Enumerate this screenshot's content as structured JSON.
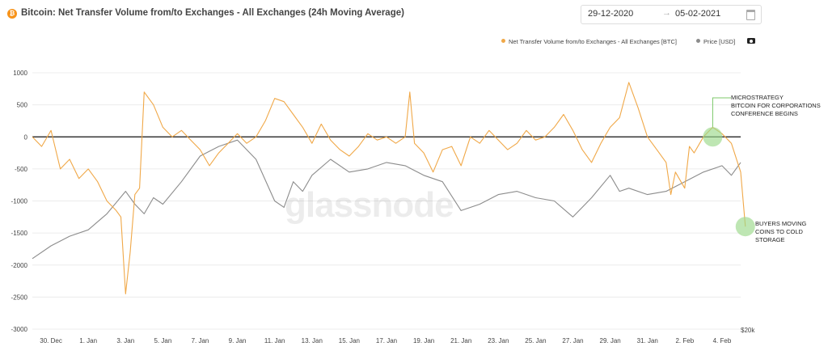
{
  "header": {
    "title": "Bitcoin: Net Transfer Volume from/to Exchanges - All Exchanges (24h Moving Average)",
    "badge": "₿",
    "date_from": "29-12-2020",
    "date_sep": "→",
    "date_to": "05-02-2021"
  },
  "legend": {
    "series_a": "Net Transfer Volume from/to Exchanges - All Exchanges [BTC]",
    "series_b": "Price [USD]"
  },
  "watermark": "glassnode",
  "icons": {
    "badge": "bitcoin-icon",
    "calendar": "calendar-icon",
    "camera": "camera-icon"
  },
  "colors": {
    "net_transfer": "#f0a848",
    "price": "#8c8c8c",
    "zero_line": "#111111",
    "annotation": "#9bd88a"
  },
  "chart_data": {
    "type": "line",
    "title": "Bitcoin: Net Transfer Volume from/to Exchanges - All Exchanges (24h Moving Average)",
    "x_ticks": [
      "30. Dec",
      "1. Jan",
      "3. Jan",
      "5. Jan",
      "7. Jan",
      "9. Jan",
      "11. Jan",
      "13. Jan",
      "15. Jan",
      "17. Jan",
      "19. Jan",
      "21. Jan",
      "23. Jan",
      "25. Jan",
      "27. Jan",
      "29. Jan",
      "31. Jan",
      "2. Feb",
      "4. Feb"
    ],
    "y_ticks": [
      1000,
      500,
      0,
      -500,
      -1000,
      -1500,
      -2000,
      -2500,
      -3000
    ],
    "y_label_right": "$20k",
    "ylim": [
      -3000,
      1000
    ],
    "x_range": [
      "2020-12-29",
      "2021-02-05"
    ],
    "grid": "horizontal",
    "legend_position": "top-right",
    "series": [
      {
        "name": "Net Transfer Volume from/to Exchanges - All Exchanges [BTC]",
        "color": "#f0a848",
        "points": [
          [
            "2020-12-29T00:00",
            0
          ],
          [
            "2020-12-29T12:00",
            -150
          ],
          [
            "2020-12-30T00:00",
            100
          ],
          [
            "2020-12-30T12:00",
            -500
          ],
          [
            "2020-12-31T00:00",
            -350
          ],
          [
            "2020-12-31T12:00",
            -650
          ],
          [
            "2021-01-01T00:00",
            -500
          ],
          [
            "2021-01-01T12:00",
            -700
          ],
          [
            "2021-01-02T00:00",
            -1000
          ],
          [
            "2021-01-02T12:00",
            -1150
          ],
          [
            "2021-01-02T18:00",
            -1250
          ],
          [
            "2021-01-03T00:00",
            -2450
          ],
          [
            "2021-01-03T06:00",
            -1800
          ],
          [
            "2021-01-03T12:00",
            -900
          ],
          [
            "2021-01-03T18:00",
            -800
          ],
          [
            "2021-01-04T00:00",
            700
          ],
          [
            "2021-01-04T12:00",
            500
          ],
          [
            "2021-01-05T00:00",
            150
          ],
          [
            "2021-01-05T12:00",
            0
          ],
          [
            "2021-01-06T00:00",
            100
          ],
          [
            "2021-01-06T12:00",
            -50
          ],
          [
            "2021-01-07T00:00",
            -200
          ],
          [
            "2021-01-07T12:00",
            -450
          ],
          [
            "2021-01-08T00:00",
            -250
          ],
          [
            "2021-01-08T12:00",
            -100
          ],
          [
            "2021-01-09T00:00",
            50
          ],
          [
            "2021-01-09T12:00",
            -100
          ],
          [
            "2021-01-10T00:00",
            0
          ],
          [
            "2021-01-10T12:00",
            250
          ],
          [
            "2021-01-11T00:00",
            600
          ],
          [
            "2021-01-11T12:00",
            550
          ],
          [
            "2021-01-12T00:00",
            350
          ],
          [
            "2021-01-12T12:00",
            150
          ],
          [
            "2021-01-13T00:00",
            -100
          ],
          [
            "2021-01-13T12:00",
            200
          ],
          [
            "2021-01-14T00:00",
            -50
          ],
          [
            "2021-01-14T12:00",
            -200
          ],
          [
            "2021-01-15T00:00",
            -300
          ],
          [
            "2021-01-15T12:00",
            -150
          ],
          [
            "2021-01-16T00:00",
            50
          ],
          [
            "2021-01-16T12:00",
            -50
          ],
          [
            "2021-01-17T00:00",
            0
          ],
          [
            "2021-01-17T12:00",
            -100
          ],
          [
            "2021-01-18T00:00",
            0
          ],
          [
            "2021-01-18T06:00",
            700
          ],
          [
            "2021-01-18T12:00",
            -100
          ],
          [
            "2021-01-19T00:00",
            -250
          ],
          [
            "2021-01-19T12:00",
            -550
          ],
          [
            "2021-01-20T00:00",
            -200
          ],
          [
            "2021-01-20T12:00",
            -150
          ],
          [
            "2021-01-21T00:00",
            -450
          ],
          [
            "2021-01-21T12:00",
            0
          ],
          [
            "2021-01-22T00:00",
            -100
          ],
          [
            "2021-01-22T12:00",
            100
          ],
          [
            "2021-01-23T00:00",
            -50
          ],
          [
            "2021-01-23T12:00",
            -200
          ],
          [
            "2021-01-24T00:00",
            -100
          ],
          [
            "2021-01-24T12:00",
            100
          ],
          [
            "2021-01-25T00:00",
            -50
          ],
          [
            "2021-01-25T12:00",
            0
          ],
          [
            "2021-01-26T00:00",
            150
          ],
          [
            "2021-01-26T12:00",
            350
          ],
          [
            "2021-01-27T00:00",
            100
          ],
          [
            "2021-01-27T12:00",
            -200
          ],
          [
            "2021-01-28T00:00",
            -400
          ],
          [
            "2021-01-28T12:00",
            -100
          ],
          [
            "2021-01-29T00:00",
            150
          ],
          [
            "2021-01-29T12:00",
            300
          ],
          [
            "2021-01-30T00:00",
            850
          ],
          [
            "2021-01-30T12:00",
            450
          ],
          [
            "2021-01-31T00:00",
            0
          ],
          [
            "2021-01-31T12:00",
            -200
          ],
          [
            "2021-02-01T00:00",
            -400
          ],
          [
            "2021-02-01T06:00",
            -900
          ],
          [
            "2021-02-01T12:00",
            -550
          ],
          [
            "2021-02-02T00:00",
            -800
          ],
          [
            "2021-02-02T06:00",
            -150
          ],
          [
            "2021-02-02T12:00",
            -250
          ],
          [
            "2021-02-03T00:00",
            0
          ],
          [
            "2021-02-03T12:00",
            150
          ],
          [
            "2021-02-04T00:00",
            50
          ],
          [
            "2021-02-04T12:00",
            -100
          ],
          [
            "2021-02-05T00:00",
            -550
          ],
          [
            "2021-02-05T06:00",
            -1400
          ]
        ]
      },
      {
        "name": "Price [USD]",
        "color": "#8c8c8c",
        "points": [
          [
            "2020-12-29T00:00",
            -1900
          ],
          [
            "2020-12-30T00:00",
            -1700
          ],
          [
            "2020-12-31T00:00",
            -1550
          ],
          [
            "2021-01-01T00:00",
            -1450
          ],
          [
            "2021-01-02T00:00",
            -1200
          ],
          [
            "2021-01-03T00:00",
            -850
          ],
          [
            "2021-01-03T12:00",
            -1050
          ],
          [
            "2021-01-04T00:00",
            -1200
          ],
          [
            "2021-01-04T12:00",
            -950
          ],
          [
            "2021-01-05T00:00",
            -1050
          ],
          [
            "2021-01-06T00:00",
            -700
          ],
          [
            "2021-01-07T00:00",
            -300
          ],
          [
            "2021-01-08T00:00",
            -150
          ],
          [
            "2021-01-09T00:00",
            -50
          ],
          [
            "2021-01-09T12:00",
            -200
          ],
          [
            "2021-01-10T00:00",
            -350
          ],
          [
            "2021-01-11T00:00",
            -1000
          ],
          [
            "2021-01-11T12:00",
            -1100
          ],
          [
            "2021-01-12T00:00",
            -700
          ],
          [
            "2021-01-12T12:00",
            -850
          ],
          [
            "2021-01-13T00:00",
            -600
          ],
          [
            "2021-01-14T00:00",
            -350
          ],
          [
            "2021-01-15T00:00",
            -550
          ],
          [
            "2021-01-16T00:00",
            -500
          ],
          [
            "2021-01-17T00:00",
            -400
          ],
          [
            "2021-01-18T00:00",
            -450
          ],
          [
            "2021-01-19T00:00",
            -600
          ],
          [
            "2021-01-20T00:00",
            -700
          ],
          [
            "2021-01-21T00:00",
            -1150
          ],
          [
            "2021-01-22T00:00",
            -1050
          ],
          [
            "2021-01-23T00:00",
            -900
          ],
          [
            "2021-01-24T00:00",
            -850
          ],
          [
            "2021-01-25T00:00",
            -950
          ],
          [
            "2021-01-26T00:00",
            -1000
          ],
          [
            "2021-01-27T00:00",
            -1250
          ],
          [
            "2021-01-28T00:00",
            -950
          ],
          [
            "2021-01-29T00:00",
            -600
          ],
          [
            "2021-01-29T12:00",
            -850
          ],
          [
            "2021-01-30T00:00",
            -800
          ],
          [
            "2021-01-31T00:00",
            -900
          ],
          [
            "2021-02-01T00:00",
            -850
          ],
          [
            "2021-02-02T00:00",
            -700
          ],
          [
            "2021-02-03T00:00",
            -550
          ],
          [
            "2021-02-04T00:00",
            -450
          ],
          [
            "2021-02-04T12:00",
            -600
          ],
          [
            "2021-02-05T00:00",
            -400
          ]
        ]
      }
    ],
    "annotations": [
      {
        "text": [
          "MICROSTRATEGY",
          "BITCOIN FOR CORPORATIONS",
          "CONFERENCE BEGINS"
        ],
        "at": [
          "2021-02-03T12:00",
          0
        ]
      },
      {
        "text": [
          "BUYERS MOVING",
          "COINS TO COLD",
          "STORAGE"
        ],
        "at": [
          "2021-02-05T06:00",
          -1400
        ]
      }
    ]
  }
}
